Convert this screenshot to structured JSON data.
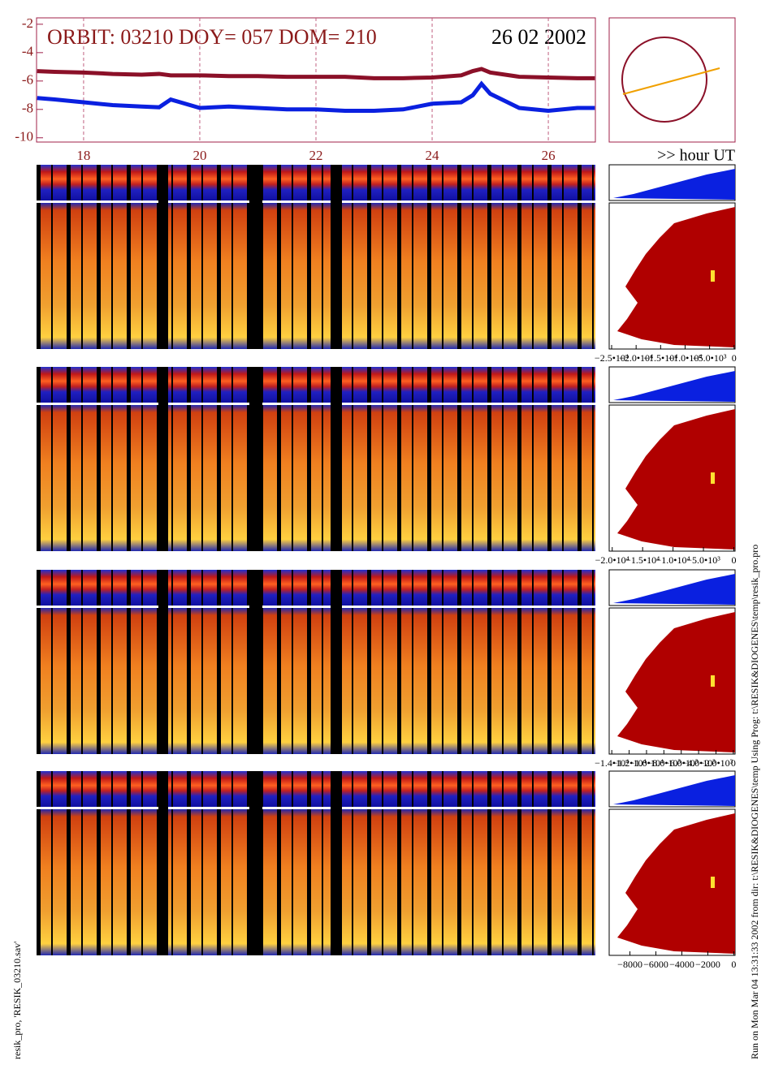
{
  "chart_data": {
    "type": "line",
    "title": "ORBIT: 03210 DOY=  057 DOM=  210",
    "subtitle": "26 02 2002",
    "x_label": ">> hour UT",
    "x": [
      17.2,
      17.5,
      18,
      18.5,
      19,
      19.3,
      19.5,
      20,
      20.5,
      21,
      21.5,
      22,
      22.5,
      23,
      23.5,
      24,
      24.5,
      24.7,
      24.85,
      25,
      25.5,
      26,
      26.5,
      26.8
    ],
    "series": [
      {
        "color": "#8b1028",
        "values": [
          -5.3,
          -5.35,
          -5.4,
          -5.5,
          -5.55,
          -5.5,
          -5.6,
          -5.6,
          -5.65,
          -5.65,
          -5.7,
          -5.7,
          -5.7,
          -5.8,
          -5.8,
          -5.75,
          -5.6,
          -5.3,
          -5.15,
          -5.4,
          -5.7,
          -5.75,
          -5.8,
          -5.8
        ]
      },
      {
        "color": "#0a20e0",
        "values": [
          -7.2,
          -7.3,
          -7.5,
          -7.7,
          -7.8,
          -7.85,
          -7.3,
          -7.9,
          -7.8,
          -7.9,
          -8.0,
          -8.0,
          -8.1,
          -8.1,
          -8.0,
          -7.6,
          -7.5,
          -7.0,
          -6.2,
          -6.9,
          -7.9,
          -8.1,
          -7.9,
          -7.9
        ]
      }
    ],
    "xlim": [
      17.19,
      26.81
    ],
    "xticks": [
      18,
      20,
      22,
      24,
      26
    ],
    "ylim": [
      -10.3,
      -1.55
    ],
    "yticks": [
      -2,
      -4,
      -6,
      -8,
      -10
    ],
    "grid": true
  },
  "side_axes": [
    {
      "xlim": [
        -25500,
        200
      ],
      "xticks": [
        {
          "value": -25000,
          "label": "−2.5•10⁴"
        },
        {
          "value": -20000,
          "label": "−2.0•10⁴"
        },
        {
          "value": -15000,
          "label": "−1.5•10⁴"
        },
        {
          "value": -10000,
          "label": "−1.0•10⁴"
        },
        {
          "value": -5000,
          "label": "−5.0•10³"
        },
        0
      ]
    },
    {
      "xlim": [
        -20500,
        200
      ],
      "xticks": [
        {
          "value": -20000,
          "label": "−2.0•10⁴"
        },
        {
          "value": -15000,
          "label": "−1.5•10⁴"
        },
        {
          "value": -10000,
          "label": "−1.0•10⁴"
        },
        {
          "value": -5000,
          "label": "−5.0•10³"
        },
        0
      ]
    },
    {
      "xlim": [
        -14300,
        200
      ],
      "xticks": [
        {
          "value": -14000,
          "label": "−1.4•10⁴"
        },
        {
          "value": -12000,
          "label": "−1.2•10⁴"
        },
        {
          "value": -10000,
          "label": "−1.0•10⁴"
        },
        {
          "value": -8000,
          "label": "−8.0•10³"
        },
        {
          "value": -6000,
          "label": "−6.0•10³"
        },
        {
          "value": -4000,
          "label": "−4.0•10³"
        },
        {
          "value": -2000,
          "label": "−2.0•10³"
        },
        0
      ]
    },
    {
      "xlim": [
        -9600,
        100
      ],
      "xticks": [
        {
          "value": -8000,
          "label": "−8000"
        },
        {
          "value": -6000,
          "label": "−6000"
        },
        {
          "value": -4000,
          "label": "−4000"
        },
        {
          "value": -2000,
          "label": "−2000"
        },
        0
      ]
    }
  ],
  "footer_left": "resik_pro, 'RESIK_03210.sav'",
  "footer_right": "Run on Mon Mar 04 13:31:33 2002  from dir: t:\\RESIK&DIOGENES\\temp Using Prog: t:\\RESIK&DIOGENES\\temp\\resik_pro.pro"
}
